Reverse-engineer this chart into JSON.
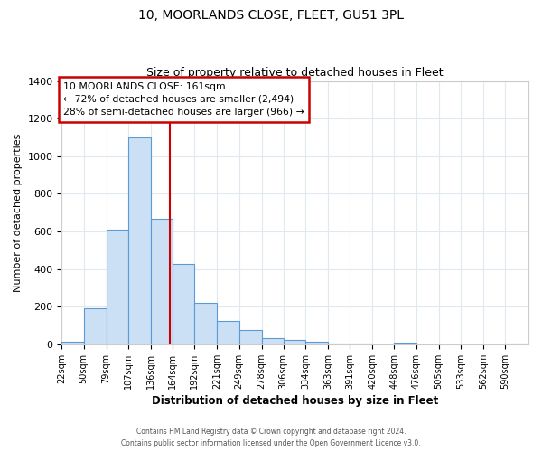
{
  "title1": "10, MOORLANDS CLOSE, FLEET, GU51 3PL",
  "title2": "Size of property relative to detached houses in Fleet",
  "xlabel": "Distribution of detached houses by size in Fleet",
  "ylabel": "Number of detached properties",
  "bar_color": "#cce0f5",
  "bar_edge_color": "#5b9bd5",
  "bins": [
    "22sqm",
    "50sqm",
    "79sqm",
    "107sqm",
    "136sqm",
    "164sqm",
    "192sqm",
    "221sqm",
    "249sqm",
    "278sqm",
    "306sqm",
    "334sqm",
    "363sqm",
    "391sqm",
    "420sqm",
    "448sqm",
    "476sqm",
    "505sqm",
    "533sqm",
    "562sqm",
    "590sqm"
  ],
  "values": [
    15,
    190,
    610,
    1100,
    670,
    425,
    220,
    125,
    75,
    35,
    25,
    15,
    5,
    3,
    2,
    10,
    2,
    1,
    1,
    1,
    5
  ],
  "bin_edges": [
    22,
    50,
    79,
    107,
    136,
    164,
    192,
    221,
    249,
    278,
    306,
    334,
    363,
    391,
    420,
    448,
    476,
    505,
    533,
    562,
    590,
    620
  ],
  "property_size": 161,
  "red_line_x": 161,
  "annotation_title": "10 MOORLANDS CLOSE: 161sqm",
  "annotation_line1": "← 72% of detached houses are smaller (2,494)",
  "annotation_line2": "28% of semi-detached houses are larger (966) →",
  "annotation_box_color": "#ffffff",
  "annotation_box_edge_color": "#cc0000",
  "red_line_color": "#cc0000",
  "ylim": [
    0,
    1400
  ],
  "yticks": [
    0,
    200,
    400,
    600,
    800,
    1000,
    1200,
    1400
  ],
  "footer1": "Contains HM Land Registry data © Crown copyright and database right 2024.",
  "footer2": "Contains public sector information licensed under the Open Government Licence v3.0.",
  "bg_color": "#ffffff",
  "plot_bg_color": "#ffffff",
  "grid_color": "#e0e8f0"
}
